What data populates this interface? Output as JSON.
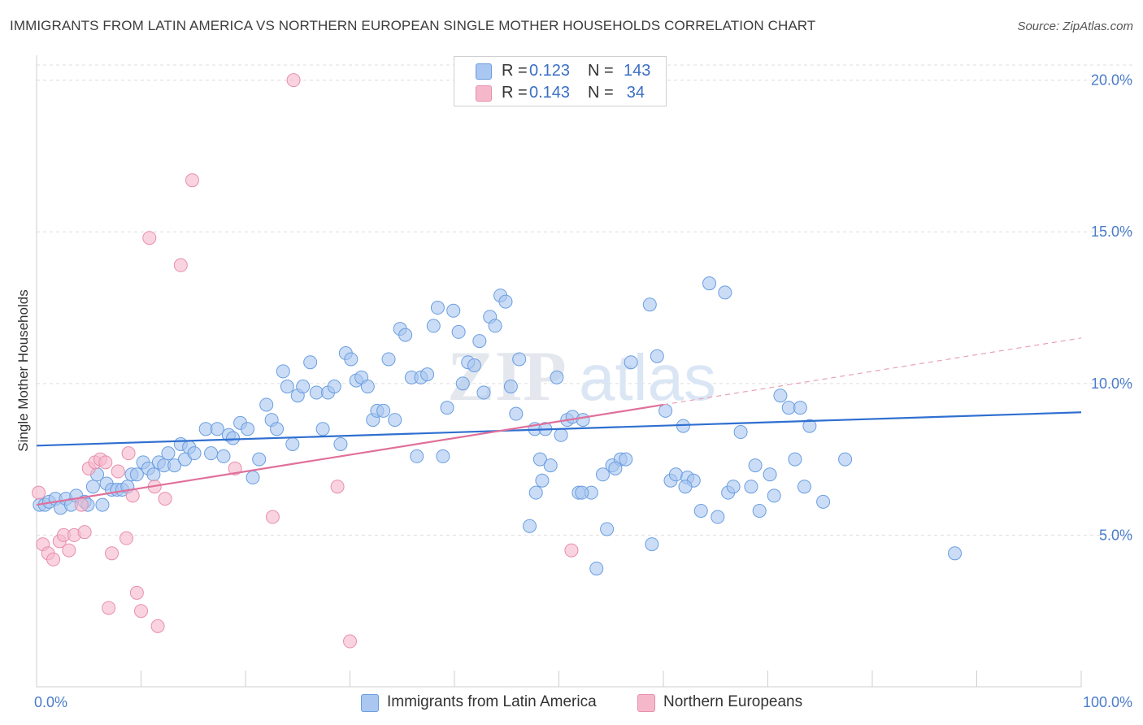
{
  "title": "IMMIGRANTS FROM LATIN AMERICA VS NORTHERN EUROPEAN SINGLE MOTHER HOUSEHOLDS CORRELATION CHART",
  "source": "Source: ZipAtlas.com",
  "watermark": {
    "zip": "ZIP",
    "atlas": "atlas"
  },
  "legend": {
    "rows": [
      {
        "r_label": "R =",
        "r_value": "0.123",
        "n_label": "N =",
        "n_value": "143",
        "color": "#a9c7f0"
      },
      {
        "r_label": "R =",
        "r_value": "0.143",
        "n_label": "N =",
        "n_value": "34",
        "color": "#f5b8cb"
      }
    ]
  },
  "bottom_legend": [
    {
      "label": "Immigrants from Latin America",
      "color": "#a9c7f0"
    },
    {
      "label": "Northern Europeans",
      "color": "#f5b8cb"
    }
  ],
  "chart_data": {
    "type": "scatter",
    "title": "IMMIGRANTS FROM LATIN AMERICA VS NORTHERN EUROPEAN SINGLE MOTHER HOUSEHOLDS CORRELATION CHART",
    "xlabel": "",
    "ylabel": "Single Mother Households",
    "xlim": [
      0,
      100
    ],
    "ylim": [
      0,
      20.5
    ],
    "x_tick_labels": [
      "0.0%",
      "100.0%"
    ],
    "y_ticks": [
      5,
      10,
      15,
      20
    ],
    "y_tick_labels": [
      "5.0%",
      "10.0%",
      "15.0%",
      "20.0%"
    ],
    "grid": "horizontal dashed",
    "legend_placement": "top-center",
    "series": [
      {
        "name": "Immigrants from Latin America",
        "color": "#6a9ee0",
        "fill": "#a9c7f0",
        "trend": {
          "x": [
            0,
            100
          ],
          "y": [
            7.95,
            9.05
          ]
        },
        "points": [
          [
            0.3,
            6.0
          ],
          [
            0.8,
            6.0
          ],
          [
            1.2,
            6.1
          ],
          [
            1.8,
            6.2
          ],
          [
            2.3,
            5.9
          ],
          [
            2.8,
            6.2
          ],
          [
            3.3,
            6.0
          ],
          [
            3.8,
            6.3
          ],
          [
            4.6,
            6.1
          ],
          [
            4.9,
            6.0
          ],
          [
            5.4,
            6.6
          ],
          [
            5.8,
            7.0
          ],
          [
            6.3,
            6.0
          ],
          [
            6.7,
            6.7
          ],
          [
            7.2,
            6.5
          ],
          [
            7.7,
            6.5
          ],
          [
            8.2,
            6.5
          ],
          [
            8.7,
            6.6
          ],
          [
            9.1,
            7.0
          ],
          [
            9.6,
            7.0
          ],
          [
            10.2,
            7.4
          ],
          [
            10.7,
            7.2
          ],
          [
            11.2,
            7.0
          ],
          [
            11.7,
            7.4
          ],
          [
            12.2,
            7.3
          ],
          [
            12.6,
            7.7
          ],
          [
            13.2,
            7.3
          ],
          [
            13.8,
            8.0
          ],
          [
            14.2,
            7.5
          ],
          [
            14.6,
            7.9
          ],
          [
            15.1,
            7.7
          ],
          [
            16.2,
            8.5
          ],
          [
            16.7,
            7.7
          ],
          [
            17.3,
            8.5
          ],
          [
            17.9,
            7.6
          ],
          [
            18.4,
            8.3
          ],
          [
            18.8,
            8.2
          ],
          [
            19.5,
            8.7
          ],
          [
            20.2,
            8.5
          ],
          [
            20.7,
            6.9
          ],
          [
            21.3,
            7.5
          ],
          [
            22.0,
            9.3
          ],
          [
            22.5,
            8.8
          ],
          [
            23.0,
            8.5
          ],
          [
            23.6,
            10.4
          ],
          [
            24.0,
            9.9
          ],
          [
            24.5,
            8.0
          ],
          [
            25.0,
            9.6
          ],
          [
            25.5,
            9.9
          ],
          [
            26.2,
            10.7
          ],
          [
            26.8,
            9.7
          ],
          [
            27.4,
            8.5
          ],
          [
            27.9,
            9.7
          ],
          [
            28.5,
            9.9
          ],
          [
            29.1,
            8.0
          ],
          [
            29.6,
            11.0
          ],
          [
            30.1,
            10.8
          ],
          [
            30.6,
            10.1
          ],
          [
            31.1,
            10.2
          ],
          [
            31.7,
            9.9
          ],
          [
            32.2,
            8.8
          ],
          [
            32.6,
            9.1
          ],
          [
            33.2,
            9.1
          ],
          [
            33.7,
            10.8
          ],
          [
            34.3,
            8.8
          ],
          [
            34.8,
            11.8
          ],
          [
            35.3,
            11.6
          ],
          [
            35.9,
            10.2
          ],
          [
            36.4,
            7.6
          ],
          [
            36.8,
            10.2
          ],
          [
            37.4,
            10.3
          ],
          [
            38.0,
            11.9
          ],
          [
            38.4,
            12.5
          ],
          [
            38.9,
            7.6
          ],
          [
            39.3,
            9.2
          ],
          [
            39.9,
            12.4
          ],
          [
            40.4,
            11.7
          ],
          [
            40.8,
            10.0
          ],
          [
            41.3,
            10.7
          ],
          [
            41.9,
            10.6
          ],
          [
            42.4,
            11.4
          ],
          [
            42.8,
            9.7
          ],
          [
            43.4,
            12.2
          ],
          [
            43.9,
            11.9
          ],
          [
            44.4,
            12.9
          ],
          [
            44.9,
            12.7
          ],
          [
            45.4,
            9.9
          ],
          [
            45.9,
            9.0
          ],
          [
            46.2,
            10.8
          ],
          [
            47.2,
            5.3
          ],
          [
            47.7,
            8.5
          ],
          [
            48.2,
            7.5
          ],
          [
            48.7,
            8.5
          ],
          [
            49.2,
            7.3
          ],
          [
            49.8,
            10.2
          ],
          [
            50.2,
            8.3
          ],
          [
            50.8,
            8.8
          ],
          [
            51.3,
            8.9
          ],
          [
            51.9,
            6.4
          ],
          [
            52.3,
            8.8
          ],
          [
            53.1,
            6.4
          ],
          [
            53.6,
            3.9
          ],
          [
            54.2,
            7.0
          ],
          [
            54.6,
            5.2
          ],
          [
            55.1,
            7.3
          ],
          [
            55.9,
            7.5
          ],
          [
            56.4,
            7.5
          ],
          [
            56.9,
            10.7
          ],
          [
            58.7,
            12.6
          ],
          [
            59.4,
            10.9
          ],
          [
            60.2,
            9.1
          ],
          [
            60.7,
            6.8
          ],
          [
            61.2,
            7.0
          ],
          [
            61.9,
            8.6
          ],
          [
            62.3,
            6.9
          ],
          [
            62.9,
            6.8
          ],
          [
            63.6,
            5.8
          ],
          [
            64.4,
            13.3
          ],
          [
            65.2,
            5.6
          ],
          [
            65.9,
            13.0
          ],
          [
            66.2,
            6.4
          ],
          [
            66.7,
            6.6
          ],
          [
            67.4,
            8.4
          ],
          [
            68.4,
            6.6
          ],
          [
            68.8,
            7.3
          ],
          [
            69.2,
            5.8
          ],
          [
            70.2,
            7.0
          ],
          [
            70.6,
            6.3
          ],
          [
            71.2,
            9.6
          ],
          [
            72.0,
            9.2
          ],
          [
            72.6,
            7.5
          ],
          [
            73.1,
            9.2
          ],
          [
            73.5,
            6.6
          ],
          [
            74.0,
            8.6
          ],
          [
            75.3,
            6.1
          ],
          [
            77.4,
            7.5
          ],
          [
            87.9,
            4.4
          ],
          [
            58.9,
            4.7
          ],
          [
            52.2,
            6.4
          ],
          [
            55.4,
            7.2
          ],
          [
            62.1,
            6.6
          ],
          [
            48.4,
            6.8
          ],
          [
            47.8,
            6.4
          ]
        ]
      },
      {
        "name": "Northern Europeans",
        "color": "#e88fab",
        "fill": "#f5b8cb",
        "trend": {
          "x": [
            0,
            60
          ],
          "y": [
            6.0,
            9.3
          ]
        },
        "trend_extension": {
          "x": [
            60,
            100
          ],
          "y": [
            9.3,
            11.5
          ]
        },
        "points": [
          [
            0.2,
            6.4
          ],
          [
            0.6,
            4.7
          ],
          [
            1.1,
            4.4
          ],
          [
            1.6,
            4.2
          ],
          [
            2.2,
            4.8
          ],
          [
            2.6,
            5.0
          ],
          [
            3.1,
            4.5
          ],
          [
            3.6,
            5.0
          ],
          [
            4.3,
            6.0
          ],
          [
            4.6,
            5.1
          ],
          [
            5.0,
            7.2
          ],
          [
            5.6,
            7.4
          ],
          [
            6.1,
            7.5
          ],
          [
            6.6,
            7.4
          ],
          [
            6.9,
            2.6
          ],
          [
            7.2,
            4.4
          ],
          [
            7.8,
            7.1
          ],
          [
            8.6,
            4.9
          ],
          [
            8.8,
            7.7
          ],
          [
            9.2,
            6.3
          ],
          [
            9.6,
            3.1
          ],
          [
            10.0,
            2.5
          ],
          [
            10.8,
            14.8
          ],
          [
            11.3,
            6.6
          ],
          [
            11.6,
            2.0
          ],
          [
            12.3,
            6.2
          ],
          [
            13.8,
            13.9
          ],
          [
            14.9,
            16.7
          ],
          [
            19.0,
            7.2
          ],
          [
            22.6,
            5.6
          ],
          [
            24.6,
            20.0
          ],
          [
            28.8,
            6.6
          ],
          [
            30.0,
            1.5
          ],
          [
            51.2,
            4.5
          ]
        ]
      }
    ]
  }
}
